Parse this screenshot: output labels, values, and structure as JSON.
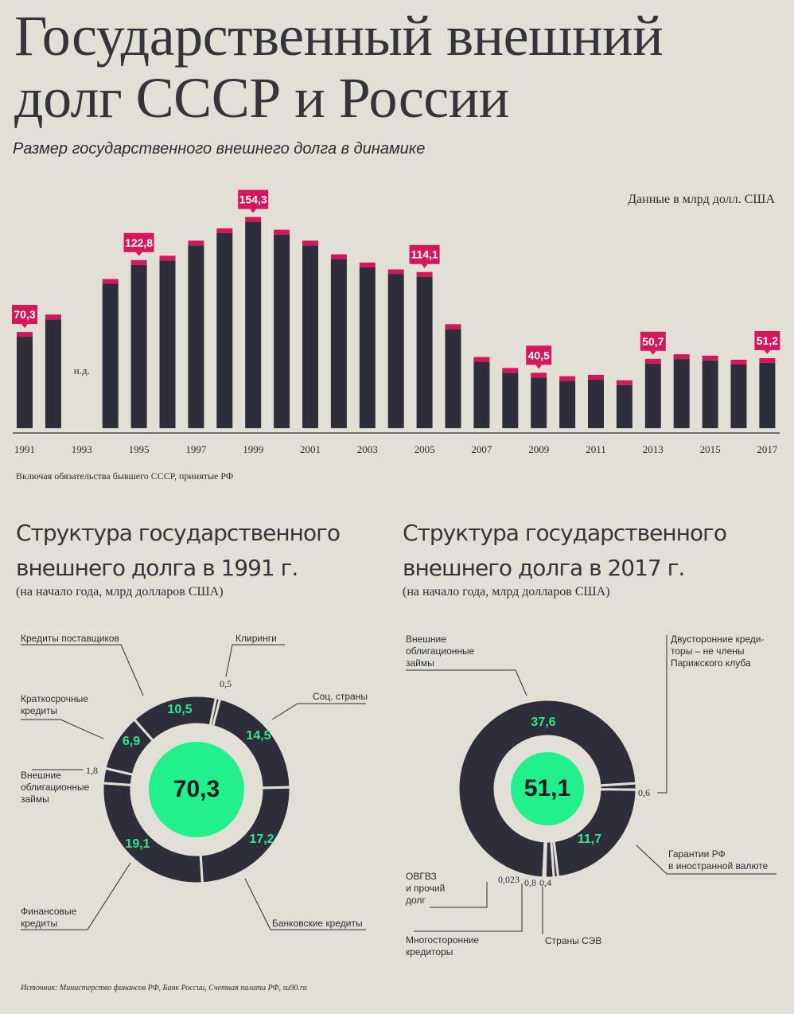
{
  "title_line1": "Государственный внешний",
  "title_line2": "долг СССР и России",
  "subtitle": "Размер государственного внешнего долга в динамике",
  "units": "Данные в млрд долл. США",
  "footnote": "Включая обязательства бывшего СССР, принятые РФ",
  "source": "Источник: Министерство финансов РФ, Банк России, Счетная палата РФ, su90.ru",
  "colors": {
    "bar": "#2e2d3a",
    "accent": "#d4165a",
    "green": "#22f08c",
    "bg": "#e2e0d6"
  },
  "chart_data": [
    {
      "type": "bar",
      "x": [
        1991,
        1992,
        1993,
        1994,
        1995,
        1996,
        1997,
        1998,
        1999,
        2000,
        2001,
        2002,
        2003,
        2004,
        2005,
        2006,
        2007,
        2008,
        2009,
        2010,
        2011,
        2012,
        2013,
        2014,
        2015,
        2016,
        2017
      ],
      "values": [
        70.3,
        83,
        null,
        109,
        122.8,
        126,
        137,
        146,
        154.3,
        145,
        137,
        127,
        121,
        116,
        114.1,
        76,
        52,
        44,
        40.5,
        38,
        39,
        35,
        50.7,
        54,
        53,
        50,
        51.2
      ],
      "highlighted": [
        {
          "year": 1991,
          "label": "70,3"
        },
        {
          "year": 1995,
          "label": "122,8"
        },
        {
          "year": 1999,
          "label": "154,3"
        },
        {
          "year": 2005,
          "label": "114,1"
        },
        {
          "year": 2009,
          "label": "40,5"
        },
        {
          "year": 2013,
          "label": "50,7"
        },
        {
          "year": 2017,
          "label": "51,2"
        }
      ],
      "missing_label": "н.д.",
      "xtick_labels": [
        "1991",
        "1993",
        "1995",
        "1997",
        "1999",
        "2001",
        "2003",
        "2005",
        "2007",
        "2009",
        "2011",
        "2013",
        "2015",
        "2017"
      ]
    },
    {
      "type": "pie",
      "title_line1": "Структура государственного",
      "title_line2": "внешнего долга в 1991 г.",
      "subtitle": "(на начало года, млрд долларов США)",
      "total": "70,3",
      "slices": [
        {
          "name": "Клиринги",
          "value": 0.5,
          "label": "0,5"
        },
        {
          "name": "Соц. страны",
          "value": 14.5,
          "label": "14,5"
        },
        {
          "name": "Банковские кредиты",
          "value": 17.2,
          "label": "17,2"
        },
        {
          "name": "Финансовые кредиты",
          "value": 19.1,
          "label": "19,1"
        },
        {
          "name": "Внешние облигационные займы",
          "value": 1.8,
          "label": "1,8"
        },
        {
          "name": "Краткосрочные кредиты",
          "value": 6.9,
          "label": "6,9"
        },
        {
          "name": "Кредиты поставщиков",
          "value": 10.5,
          "label": "10,5"
        }
      ]
    },
    {
      "type": "pie",
      "title_line1": "Структура государственного",
      "title_line2": "внешнего долга в 2017 г.",
      "subtitle": "(на начало года, млрд долларов США)",
      "total": "51,1",
      "slices": [
        {
          "name": "Двусторонние кредиторы – не члены Парижского клуба",
          "value": 0.6,
          "label": "0,6"
        },
        {
          "name": "Гарантии РФ в иностранной валюте",
          "value": 11.7,
          "label": "11,7"
        },
        {
          "name": "Страны СЭВ",
          "value": 0.4,
          "label": "0,4"
        },
        {
          "name": "Многосторонние кредиторы",
          "value": 0.8,
          "label": "0,8"
        },
        {
          "name": "ОВГВЗ и прочий долг",
          "value": 0.023,
          "label": "0,023"
        },
        {
          "name": "Внешние облигационные займы",
          "value": 37.6,
          "label": "37,6"
        }
      ]
    }
  ],
  "pie1_labels": {
    "suppliers": "Кредиты поставщиков",
    "clearing": "Клиринги",
    "short_term": "Краткосрочные\nкредиты",
    "soc": "Соц. страны",
    "bonds": "Внешние\nоблигационные\nзаймы",
    "financial": "Финансовые\nкредиты",
    "bank": "Банковские кредиты"
  },
  "pie2_labels": {
    "bonds": "Внешние\nоблигационные\nзаймы",
    "bilateral": "Двусторонние креди-\nторы – не члены\nПарижского клуба",
    "guarantees": "Гарантии РФ\nв иностранной валюте",
    "ovgvz": "ОВГВЗ\nи прочий\nдолг",
    "multilateral": "Многосторонние\nкредиторы",
    "sev": "Страны СЭВ"
  }
}
